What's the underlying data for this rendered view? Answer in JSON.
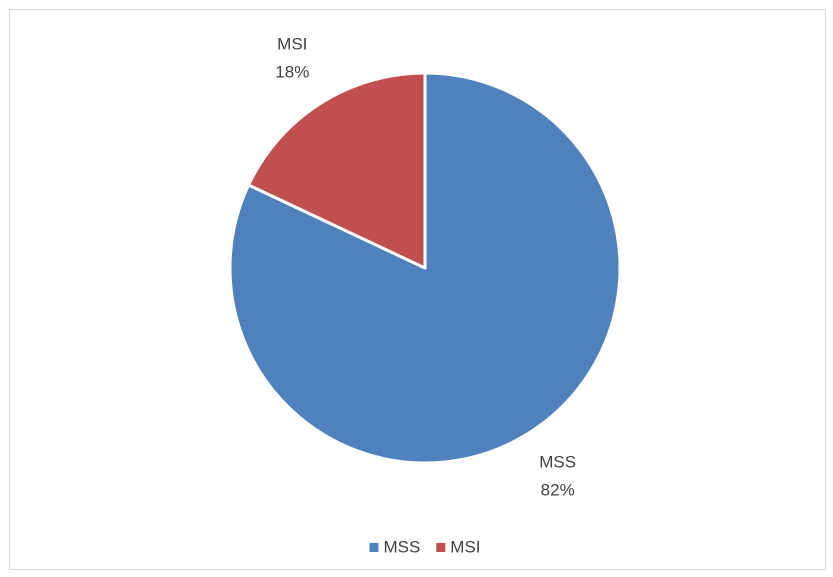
{
  "chart_data": {
    "type": "pie",
    "categories": [
      "MSS",
      "MSI"
    ],
    "values": [
      82,
      18
    ],
    "value_labels": [
      "82%",
      "18%"
    ],
    "colors": [
      "#4f81bd",
      "#c0504d"
    ],
    "legend": "bottom"
  }
}
